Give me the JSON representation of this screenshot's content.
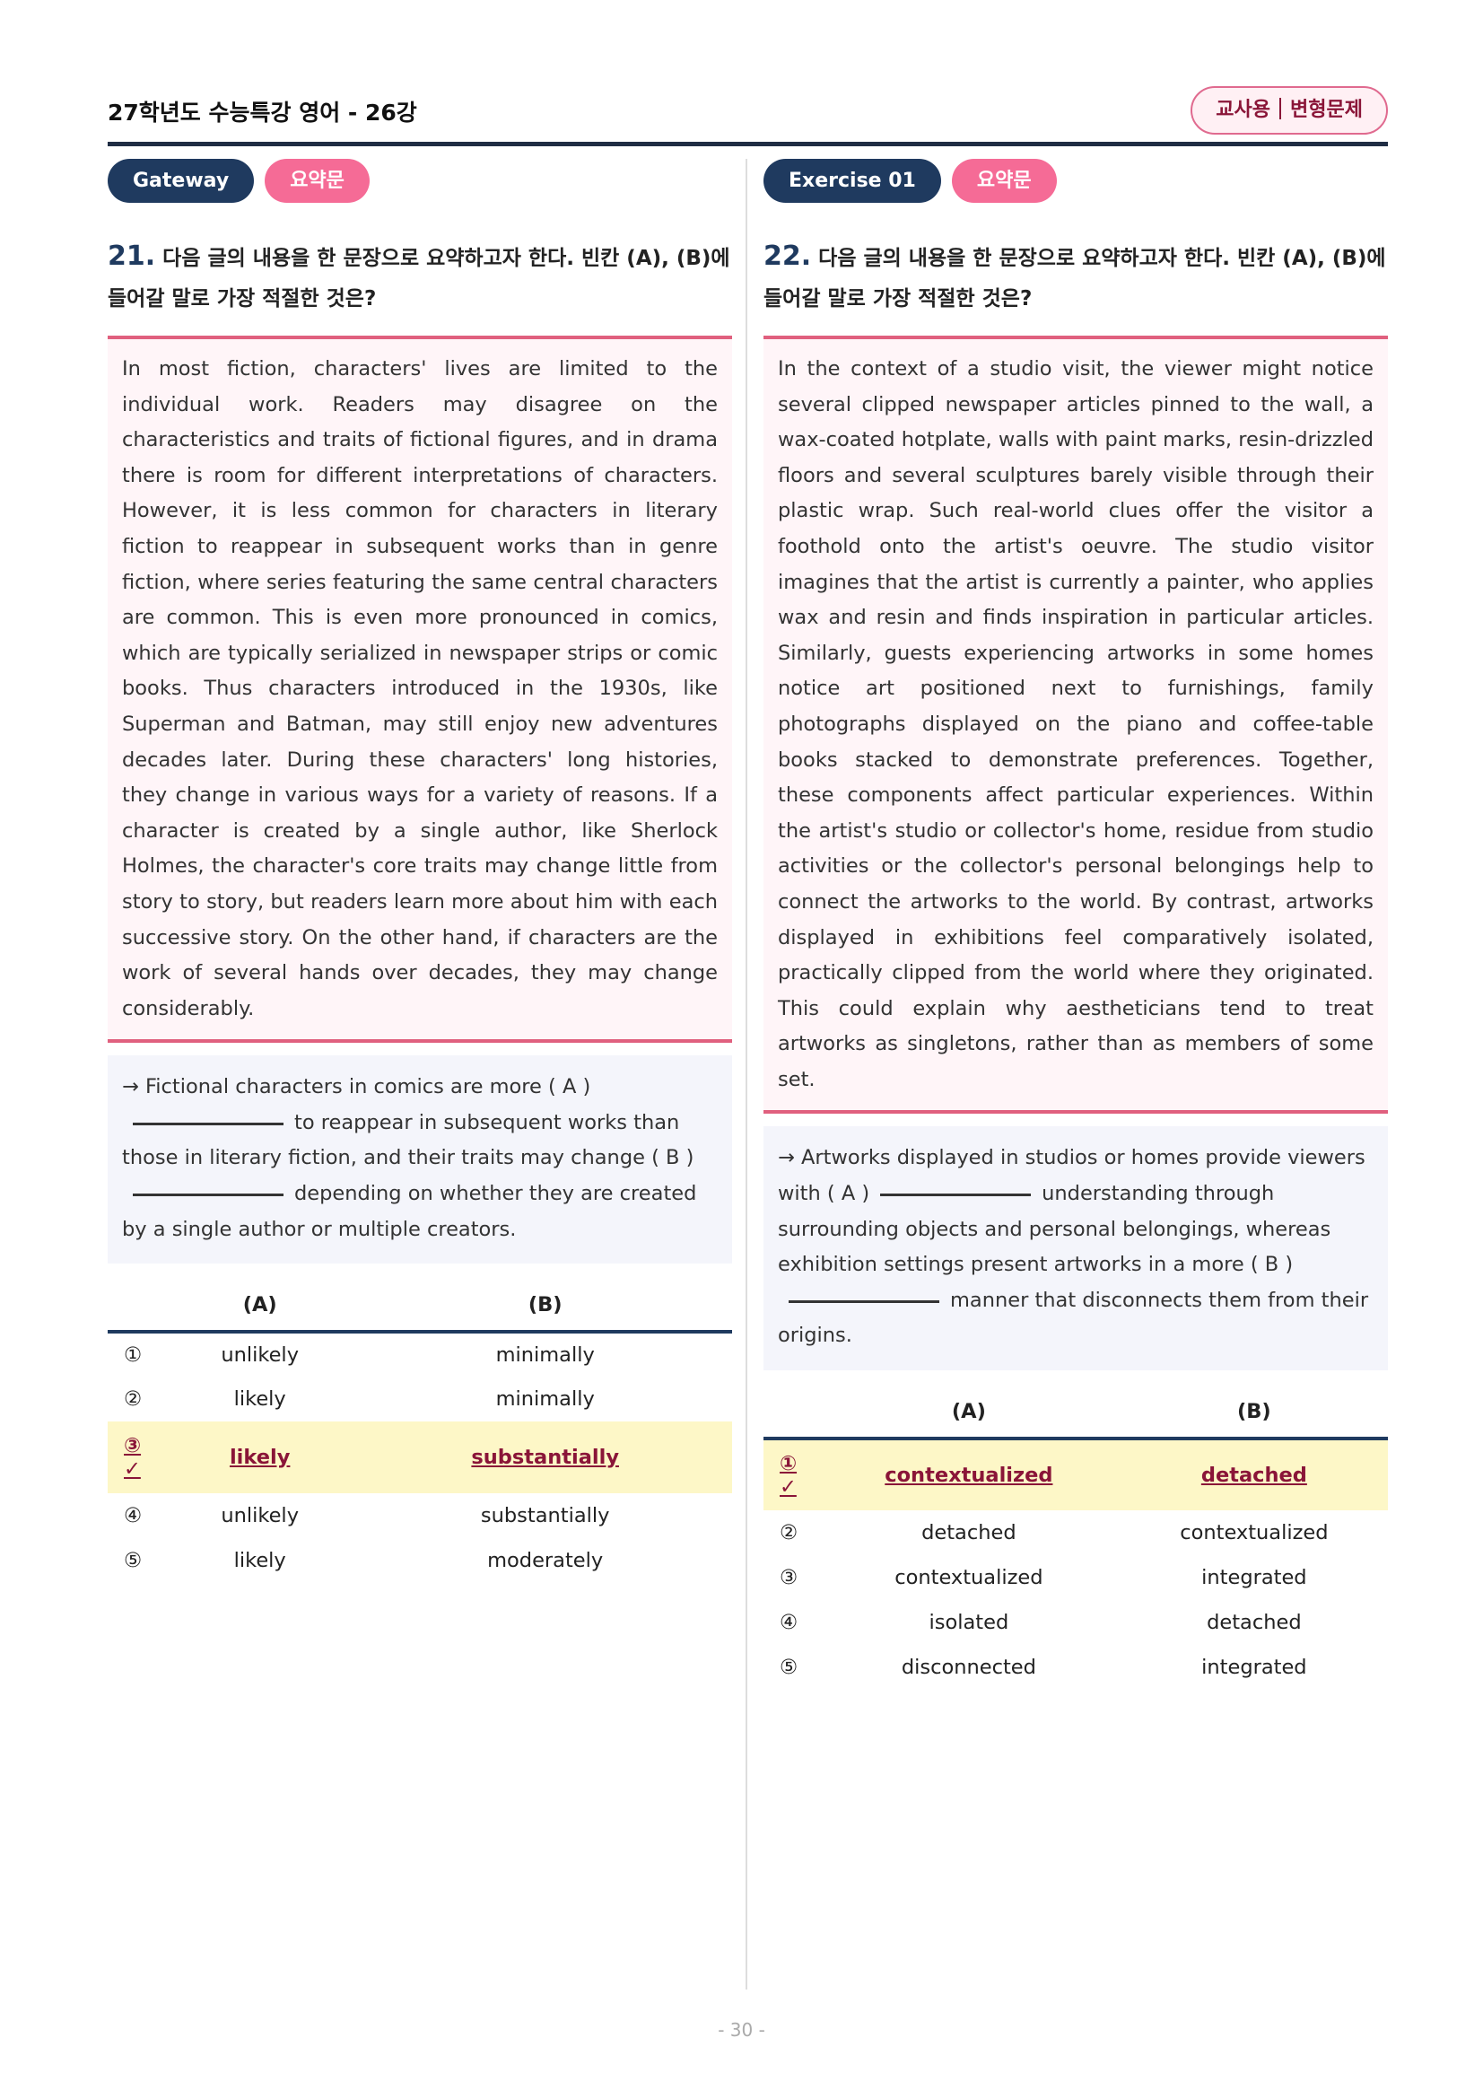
{
  "header": {
    "title": "27학년도 수능특강 영어 - 26강",
    "tag_left": "교사용",
    "tag_right": "변형문제"
  },
  "left": {
    "badge": "Gateway",
    "type": "요약문",
    "number": "21.",
    "question": "다음 글의 내용을 한 문장으로 요약하고자 한다. 빈칸 (A), (B)에 들어갈 말로 가장 적절한 것은?",
    "passage": "In most fiction, characters' lives are limited to the individual work. Readers may disagree on the characteristics and traits of fictional figures, and in drama there is room for different interpretations of characters. However, it is less common for characters in literary fiction to reappear in subsequent works than in genre fiction, where series featuring the same central characters are common. This is even more pronounced in comics, which are typically serialized in newspaper strips or comic books. Thus characters introduced in the 1930s, like Superman and Batman, may still enjoy new adventures decades later. During these characters' long histories, they change in various ways for a variety of reasons. If a character is created by a single author, like Sherlock Holmes, the character's core traits may change little from story to story, but readers learn more about him with each successive story. On the other hand, if characters are the work of several hands over decades, they may change considerably.",
    "summary": [
      "→ Fictional characters in comics are more ( A )",
      "to reappear in subsequent works than those in literary fiction, and their traits may change ( B )",
      "depending on whether they are created by a single author or multiple creators."
    ],
    "col_a": "(A)",
    "col_b": "(B)",
    "options": [
      [
        "①",
        "unlikely",
        "minimally"
      ],
      [
        "②",
        "likely",
        "minimally"
      ],
      [
        "③ ✓",
        "likely",
        "substantially"
      ],
      [
        "④",
        "unlikely",
        "substantially"
      ],
      [
        "⑤",
        "likely",
        "moderately"
      ]
    ],
    "answer_index": 2
  },
  "right": {
    "badge": "Exercise 01",
    "type": "요약문",
    "number": "22.",
    "question": "다음 글의 내용을 한 문장으로 요약하고자 한다. 빈칸 (A), (B)에 들어갈 말로 가장 적절한 것은?",
    "passage": "In the context of a studio visit, the viewer might notice several clipped newspaper articles pinned to the wall, a wax-coated hotplate, walls with paint marks, resin-drizzled floors and several sculptures barely visible through their plastic wrap. Such real-world clues offer the visitor a foothold onto the artist's oeuvre. The studio visitor imagines that the artist is currently a painter, who applies wax and resin and finds inspiration in particular articles. Similarly, guests experiencing artworks in some homes notice art positioned next to furnishings, family photographs displayed on the piano and coffee-table books stacked to demonstrate preferences. Together, these components affect particular experiences. Within the artist's studio or collector's home, residue from studio activities or the collector's personal belongings help to connect the artworks to the world. By contrast, artworks displayed in exhibitions feel comparatively isolated, practically clipped from the world where they originated. This could explain why aestheticians tend to treat artworks as singletons, rather than as members of some set.",
    "summary": [
      "→ Artworks displayed in studios or homes provide viewers with ( A )",
      "understanding through surrounding objects and personal belongings, whereas exhibition settings present artworks in a more ( B )",
      "manner that disconnects them from their origins."
    ],
    "col_a": "(A)",
    "col_b": "(B)",
    "options": [
      [
        "① ✓",
        "contextualized",
        "detached"
      ],
      [
        "②",
        "detached",
        "contextualized"
      ],
      [
        "③",
        "contextualized",
        "integrated"
      ],
      [
        "④",
        "isolated",
        "detached"
      ],
      [
        "⑤",
        "disconnected",
        "integrated"
      ]
    ],
    "answer_index": 0
  },
  "page_number": "- 30 -"
}
